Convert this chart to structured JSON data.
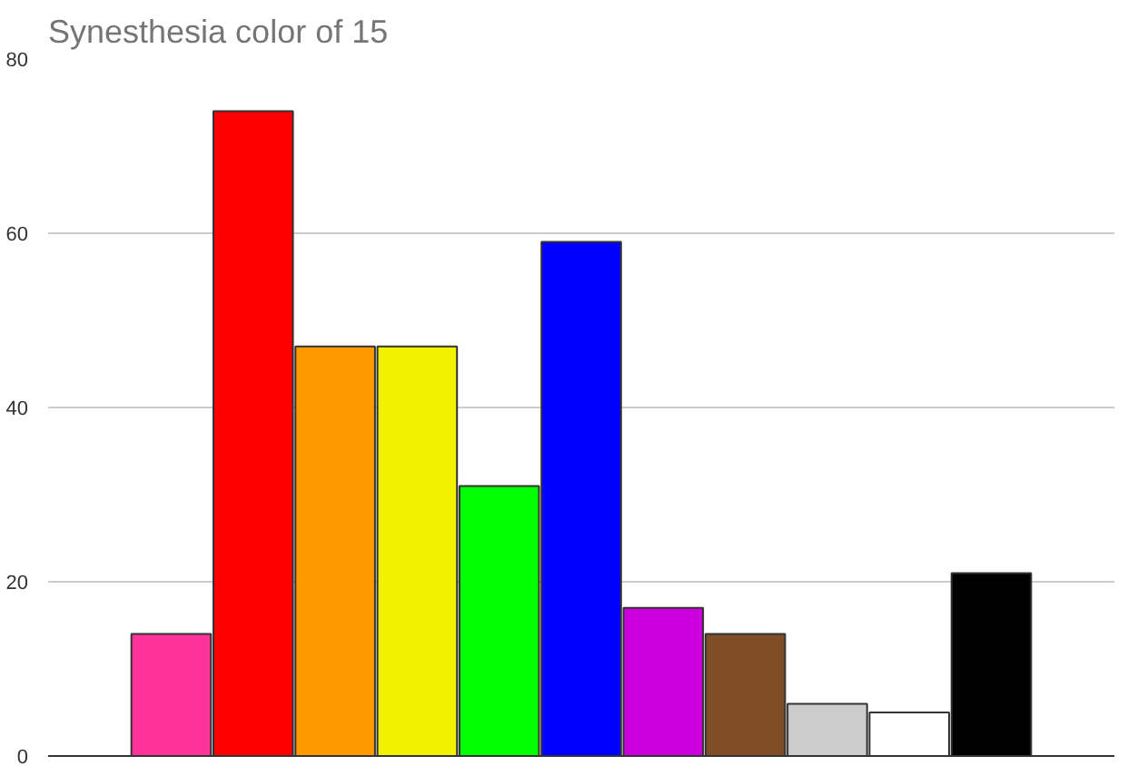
{
  "chart_data": {
    "type": "bar",
    "title": "Synesthesia color of 15",
    "categories": [
      null,
      null,
      null,
      null,
      null,
      null,
      null,
      null,
      null,
      null,
      null,
      null,
      null
    ],
    "values": [
      null,
      14,
      74,
      47,
      47,
      31,
      59,
      17,
      14,
      6,
      5,
      21,
      null
    ],
    "colors": [
      "#ffffff",
      "#ff3399",
      "#ff0000",
      "#ff9900",
      "#f2f200",
      "#00ff00",
      "#0000ff",
      "#cc00dd",
      "#7f4d26",
      "#cccccc",
      "#ffffff",
      "#000000",
      "#ffffff"
    ],
    "ylim": [
      0,
      80
    ],
    "yticks": [
      0,
      20,
      40,
      60,
      80
    ],
    "grid": "y",
    "tick_labels": "y"
  }
}
